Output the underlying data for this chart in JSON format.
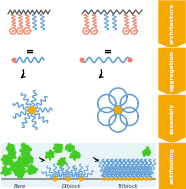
{
  "fig_width": 1.86,
  "fig_height": 1.89,
  "dpi": 100,
  "bg_color": "#ffffff",
  "sidebar_color": "#f5a800",
  "sidebar_labels": [
    "architecture",
    "aggregation",
    "assembly",
    "antifouling"
  ],
  "panel_bg": "#e8f4f8",
  "grass_color": "#44bb22",
  "blue_chain": "#5b9bd5",
  "catechol_color": "#f08060",
  "anchor_color": "#f5a800",
  "backbone_color": "#555555",
  "arrow_color": "#111111"
}
